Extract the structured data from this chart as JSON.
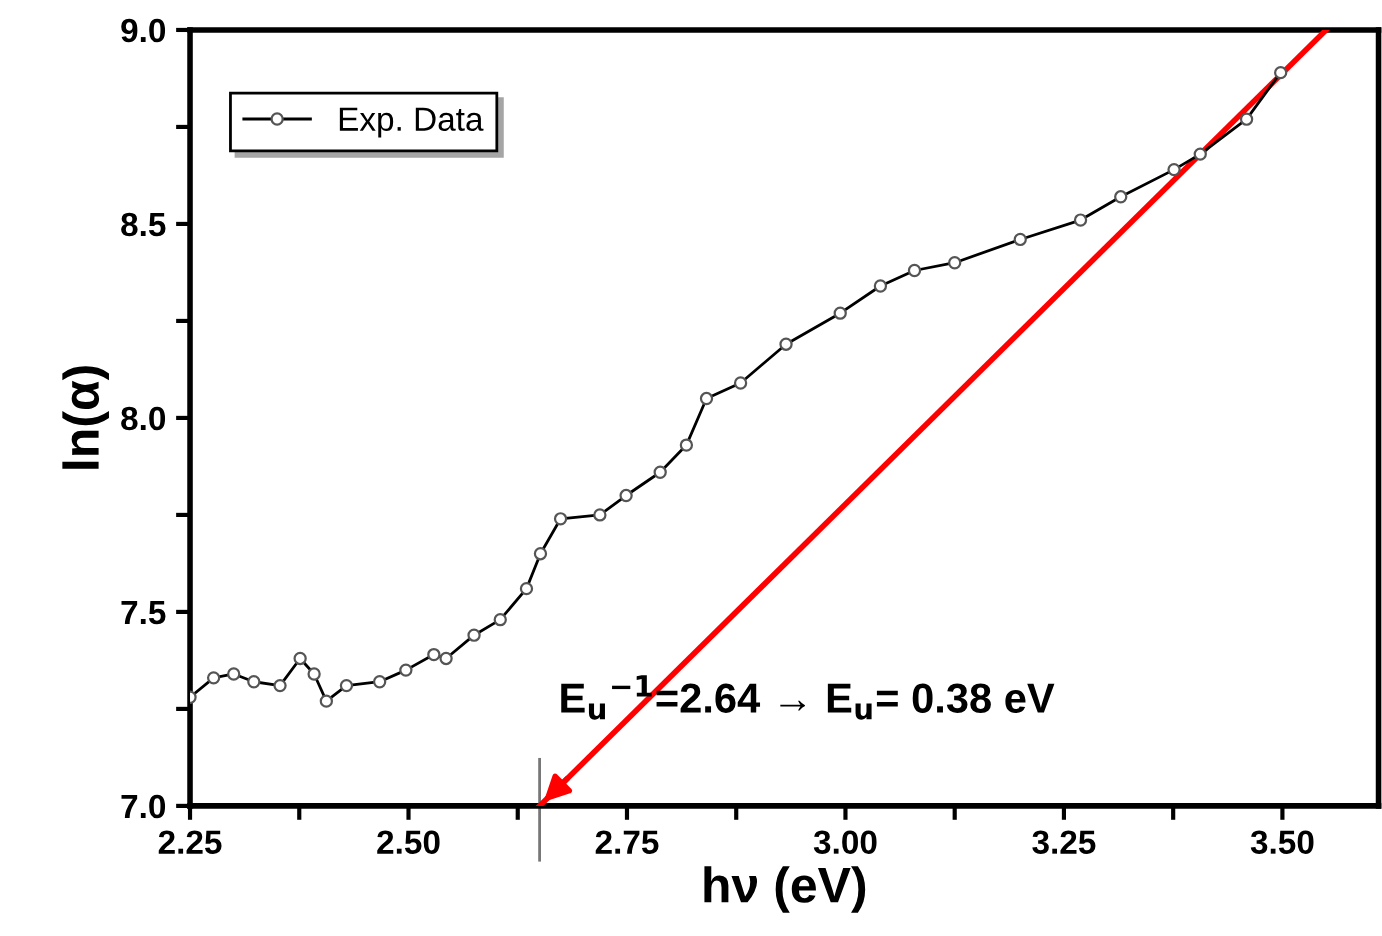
{
  "chart_data": {
    "type": "line",
    "xlabel": "hν (eV)",
    "ylabel": "ln(α)",
    "series": [
      {
        "name": "Exp. Data",
        "color": "#555555",
        "marker": "circle",
        "x": [
          2.25,
          2.277,
          2.3,
          2.323,
          2.353,
          2.376,
          2.392,
          2.406,
          2.429,
          2.467,
          2.497,
          2.529,
          2.543,
          2.575,
          2.605,
          2.635,
          2.651,
          2.674,
          2.719,
          2.749,
          2.788,
          2.818,
          2.841,
          2.88,
          2.932,
          2.994,
          3.04,
          3.079,
          3.125,
          3.2,
          3.269,
          3.315,
          3.376,
          3.406,
          3.459,
          3.498
        ],
        "values": [
          7.28,
          7.33,
          7.34,
          7.32,
          7.31,
          7.38,
          7.34,
          7.27,
          7.31,
          7.32,
          7.35,
          7.39,
          7.38,
          7.44,
          7.48,
          7.56,
          7.65,
          7.74,
          7.75,
          7.8,
          7.86,
          7.93,
          8.05,
          8.09,
          8.19,
          8.27,
          8.34,
          8.38,
          8.4,
          8.46,
          8.51,
          8.57,
          8.64,
          8.68,
          8.77,
          8.89
        ]
      },
      {
        "type": "line",
        "color": "#ff0000",
        "x": [
          2.65,
          3.55
        ],
        "values": [
          7.0,
          9.0
        ]
      }
    ],
    "annotations": [
      "E$_{u}$$^{−1}$=2.64 → E$_{u}$= 0.38 eV"
    ],
    "xlim": [
      2.25,
      3.61
    ],
    "ylim": [
      7.0,
      9.0
    ],
    "xticks": [
      {
        "value": 2.25,
        "label": "2.25"
      },
      {
        "value": 2.375,
        "label": null
      },
      {
        "value": 2.5,
        "label": "2.50"
      },
      {
        "value": 2.625,
        "label": null
      },
      {
        "value": 2.75,
        "label": "2.75"
      },
      {
        "value": 2.875,
        "label": null
      },
      {
        "value": 3.0,
        "label": "3.00"
      },
      {
        "value": 3.125,
        "label": null
      },
      {
        "value": 3.25,
        "label": "3.25"
      },
      {
        "value": 3.375,
        "label": null
      },
      {
        "value": 3.5,
        "label": "3.50"
      }
    ],
    "yticks": [
      {
        "value": 7.0,
        "label": "7.0"
      },
      {
        "value": 7.25,
        "label": null
      },
      {
        "value": 7.5,
        "label": "7.5"
      },
      {
        "value": 7.75,
        "label": null
      },
      {
        "value": 8.0,
        "label": "8.0"
      },
      {
        "value": 8.25,
        "label": null
      },
      {
        "value": 8.5,
        "label": "8.5"
      },
      {
        "value": 8.75,
        "label": null
      },
      {
        "value": 9.0,
        "label": "9.0"
      }
    ],
    "grid": false,
    "legend": "top left"
  }
}
